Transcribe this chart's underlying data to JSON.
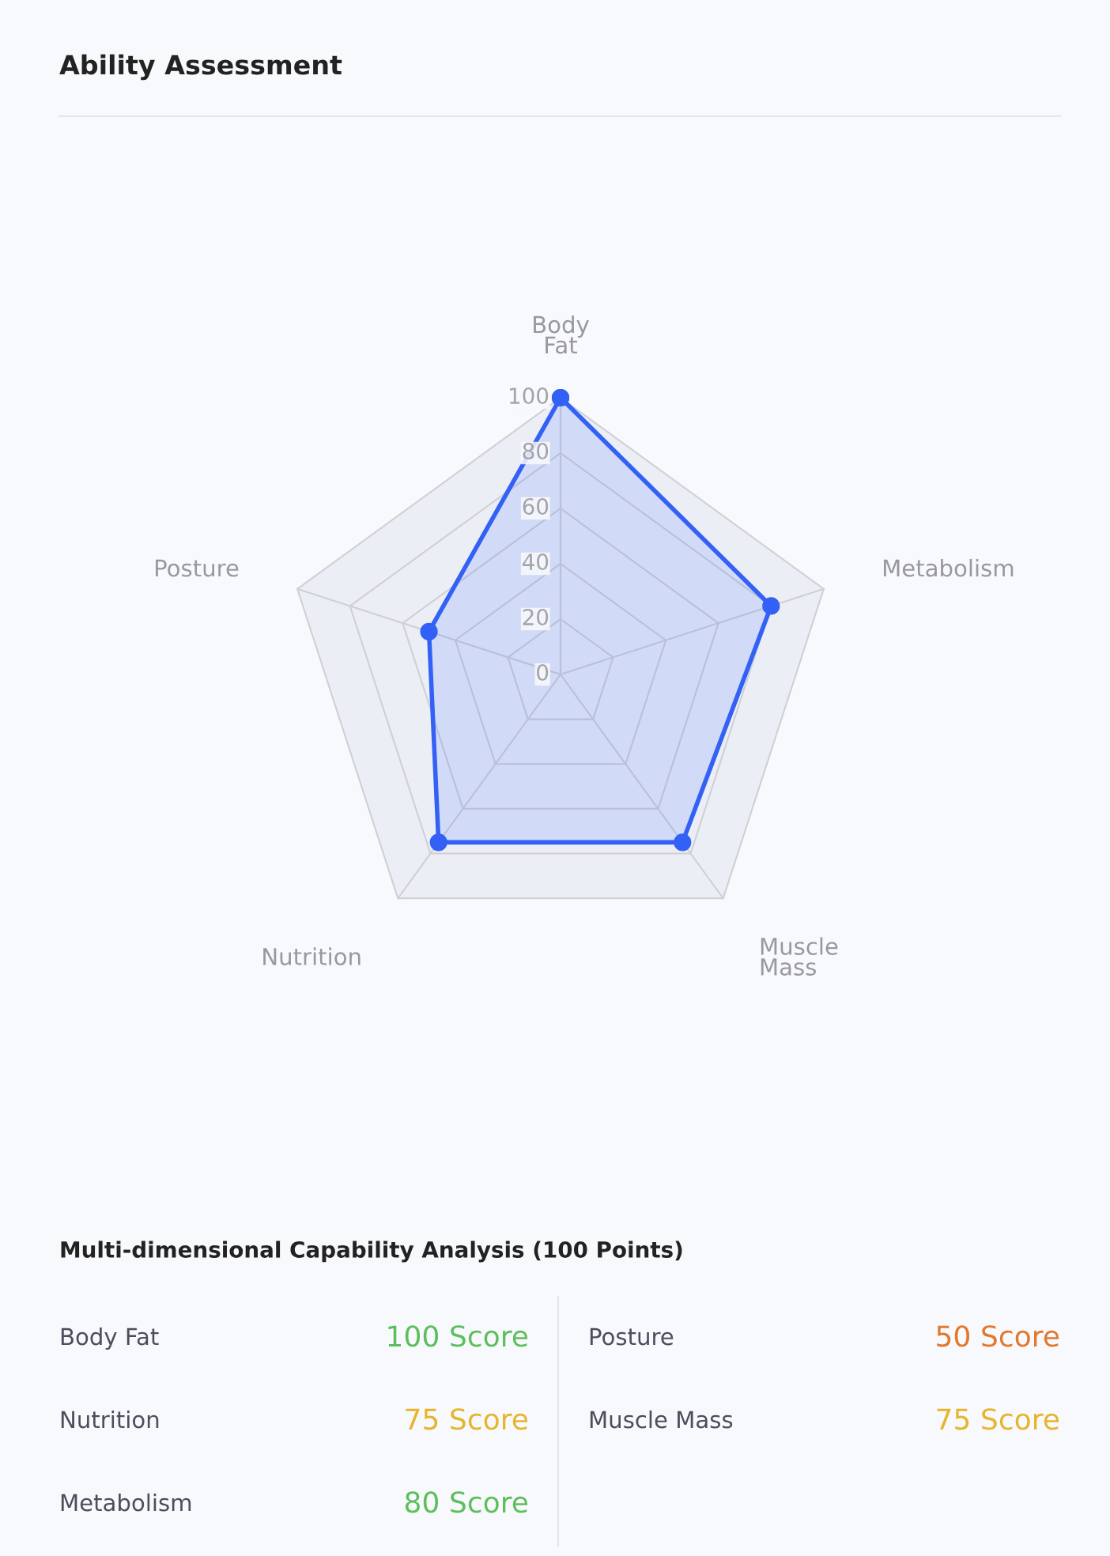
{
  "chart_data": {
    "type": "radar",
    "title": "Ability Assessment",
    "categories": [
      "Body Fat",
      "Metabolism",
      "Muscle Mass",
      "Nutrition",
      "Posture"
    ],
    "series": [
      {
        "color": "#3361f5",
        "values": [
          100,
          80,
          75,
          75,
          50
        ]
      }
    ],
    "ylim": [
      0,
      100
    ],
    "yticks": [
      0,
      20,
      40,
      60,
      80,
      100
    ],
    "grid": true,
    "marker": "circle",
    "annotations": [
      "Multi-dimensional Capability Analysis (100 Points)"
    ],
    "value_labels": [
      "100 Score",
      "80 Score",
      "75 Score",
      "75 Score",
      "50 Score"
    ]
  }
}
